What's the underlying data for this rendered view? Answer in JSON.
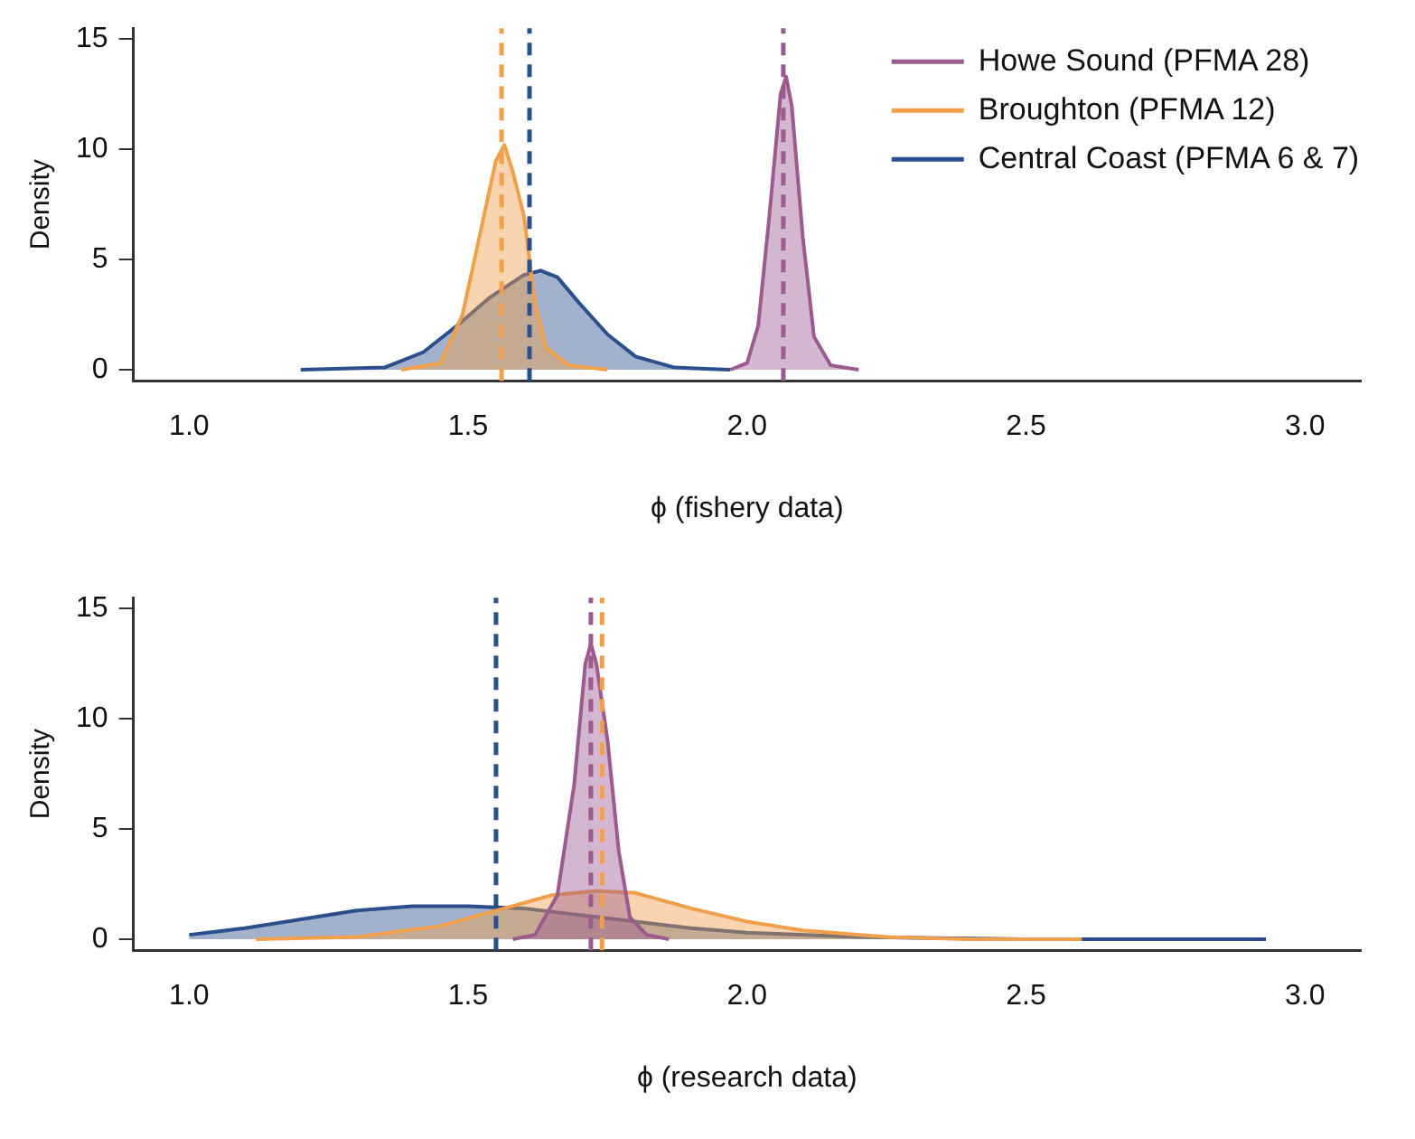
{
  "chart_data": [
    {
      "type": "area",
      "xlabel": "ϕ (fishery data)",
      "ylabel": "Density",
      "xlim": [
        0.9,
        3.1
      ],
      "ylim": [
        -0.5,
        15.5
      ],
      "xticks": [
        {
          "value": 1,
          "label": "1.0"
        },
        {
          "value": 1.5,
          "label": "1.5"
        },
        {
          "value": 2,
          "label": "2.0"
        },
        {
          "value": 2.5,
          "label": "2.5"
        },
        {
          "value": 3,
          "label": "3.0"
        }
      ],
      "yticks": [
        0,
        5,
        10,
        15
      ],
      "grid": false,
      "legend": "top right",
      "marker": "none",
      "series": [
        {
          "name": "Howe Sound (PFMA 28)",
          "color": "#9c5b8f",
          "x": [
            1.97,
            2.0,
            2.02,
            2.04,
            2.06,
            2.07,
            2.08,
            2.1,
            2.12,
            2.15,
            2.2
          ],
          "values": [
            0,
            0.3,
            2,
            7,
            12.5,
            13.3,
            12,
            6,
            1.5,
            0.2,
            0
          ]
        },
        {
          "name": "Broughton (PFMA 12)",
          "color": "#f0a04b",
          "x": [
            1.38,
            1.45,
            1.49,
            1.52,
            1.55,
            1.565,
            1.58,
            1.6,
            1.62,
            1.64,
            1.68,
            1.75
          ],
          "values": [
            0,
            0.3,
            2.5,
            6,
            9.5,
            10.2,
            9,
            7,
            3,
            1,
            0.2,
            0
          ]
        },
        {
          "name": "Central Coast (PFMA 6 & 7)",
          "color": "#2b4f8c",
          "x": [
            1.2,
            1.35,
            1.42,
            1.48,
            1.54,
            1.6,
            1.63,
            1.66,
            1.7,
            1.75,
            1.8,
            1.87,
            1.97
          ],
          "values": [
            0,
            0.1,
            0.8,
            2,
            3.3,
            4.3,
            4.5,
            4.2,
            3,
            1.6,
            0.6,
            0.1,
            0
          ]
        }
      ],
      "ref_lines": [
        {
          "axis": "x",
          "value": 2.065,
          "color": "#9c5b8f",
          "line_style": "dashed"
        },
        {
          "axis": "x",
          "value": 1.56,
          "color": "#f0a04b",
          "line_style": "dashed"
        },
        {
          "axis": "x",
          "value": 1.61,
          "color": "#2b4f8c",
          "line_style": "dashed"
        }
      ]
    },
    {
      "type": "area",
      "xlabel": "ϕ (research data)",
      "ylabel": "Density",
      "xlim": [
        0.9,
        3.1
      ],
      "ylim": [
        -0.5,
        15.5
      ],
      "xticks": [
        {
          "value": 1,
          "label": "1.0"
        },
        {
          "value": 1.5,
          "label": "1.5"
        },
        {
          "value": 2,
          "label": "2.0"
        },
        {
          "value": 2.5,
          "label": "2.5"
        },
        {
          "value": 3,
          "label": "3.0"
        }
      ],
      "yticks": [
        0,
        5,
        10,
        15
      ],
      "grid": false,
      "marker": "none",
      "series": [
        {
          "color": "#9c5b8f",
          "x": [
            1.58,
            1.62,
            1.66,
            1.69,
            1.71,
            1.72,
            1.73,
            1.75,
            1.77,
            1.79,
            1.82,
            1.86
          ],
          "values": [
            0,
            0.2,
            2,
            7,
            12.5,
            13.4,
            12.5,
            9,
            4,
            1,
            0.2,
            0
          ]
        },
        {
          "color": "#f0a04b",
          "x": [
            1.12,
            1.3,
            1.45,
            1.55,
            1.65,
            1.73,
            1.8,
            1.9,
            2.0,
            2.1,
            2.25,
            2.4,
            2.6
          ],
          "values": [
            0,
            0.1,
            0.6,
            1.3,
            2,
            2.2,
            2.1,
            1.4,
            0.8,
            0.4,
            0.1,
            0,
            0
          ]
        },
        {
          "color": "#2b4f8c",
          "x": [
            1.0,
            1.1,
            1.2,
            1.3,
            1.4,
            1.5,
            1.6,
            1.7,
            1.8,
            1.9,
            2.0,
            2.2,
            2.5,
            2.93
          ],
          "values": [
            0.2,
            0.5,
            0.9,
            1.3,
            1.5,
            1.5,
            1.4,
            1.1,
            0.8,
            0.5,
            0.3,
            0.1,
            0,
            0
          ]
        }
      ],
      "ref_lines": [
        {
          "axis": "x",
          "value": 1.72,
          "color": "#9c5b8f",
          "line_style": "dashed"
        },
        {
          "axis": "x",
          "value": 1.74,
          "color": "#f0a04b",
          "line_style": "dashed"
        },
        {
          "axis": "x",
          "value": 1.55,
          "color": "#2b4f8c",
          "line_style": "dashed"
        }
      ]
    }
  ]
}
